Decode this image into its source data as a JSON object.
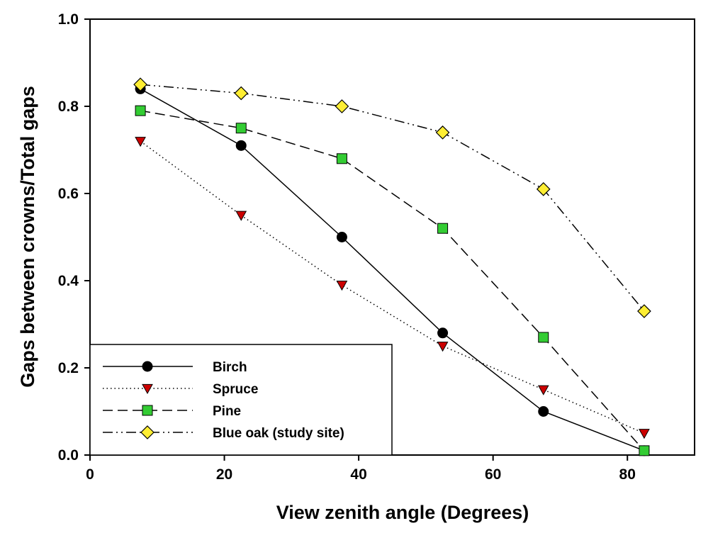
{
  "chart_data": {
    "type": "line",
    "title": "",
    "xlabel": "View zenith angle (Degrees)",
    "ylabel": "Gaps between crowns/Total gaps",
    "xlim": [
      0,
      90
    ],
    "ylim": [
      0,
      1.0
    ],
    "xticks": [
      0,
      20,
      40,
      60,
      80
    ],
    "yticks": [
      0.0,
      0.2,
      0.4,
      0.6,
      0.8,
      1.0
    ],
    "xtick_labels": [
      "0",
      "20",
      "40",
      "60",
      "80"
    ],
    "ytick_labels": [
      "0.0",
      "0.2",
      "0.4",
      "0.6",
      "0.8",
      "1.0"
    ],
    "grid": false,
    "legend_position": "bottom-left",
    "x": [
      7.5,
      22.5,
      37.5,
      52.5,
      67.5,
      82.5
    ],
    "series": [
      {
        "name": "Birch",
        "values": [
          0.84,
          0.71,
          0.5,
          0.28,
          0.1,
          0.01
        ],
        "marker": "circle",
        "marker_color": "#000000",
        "line_style": "solid"
      },
      {
        "name": "Spruce",
        "values": [
          0.72,
          0.55,
          0.39,
          0.25,
          0.15,
          0.05
        ],
        "marker": "triangle-down",
        "marker_color": "#cc0000",
        "line_style": "dotted"
      },
      {
        "name": "Pine",
        "values": [
          0.79,
          0.75,
          0.68,
          0.52,
          0.27,
          0.01
        ],
        "marker": "square",
        "marker_color": "#33cc33",
        "line_style": "dashed"
      },
      {
        "name": "Blue oak (study site)",
        "values": [
          0.85,
          0.83,
          0.8,
          0.74,
          0.61,
          0.33
        ],
        "marker": "diamond",
        "marker_color": "#ffee33",
        "line_style": "dash-dot-dot"
      }
    ]
  }
}
